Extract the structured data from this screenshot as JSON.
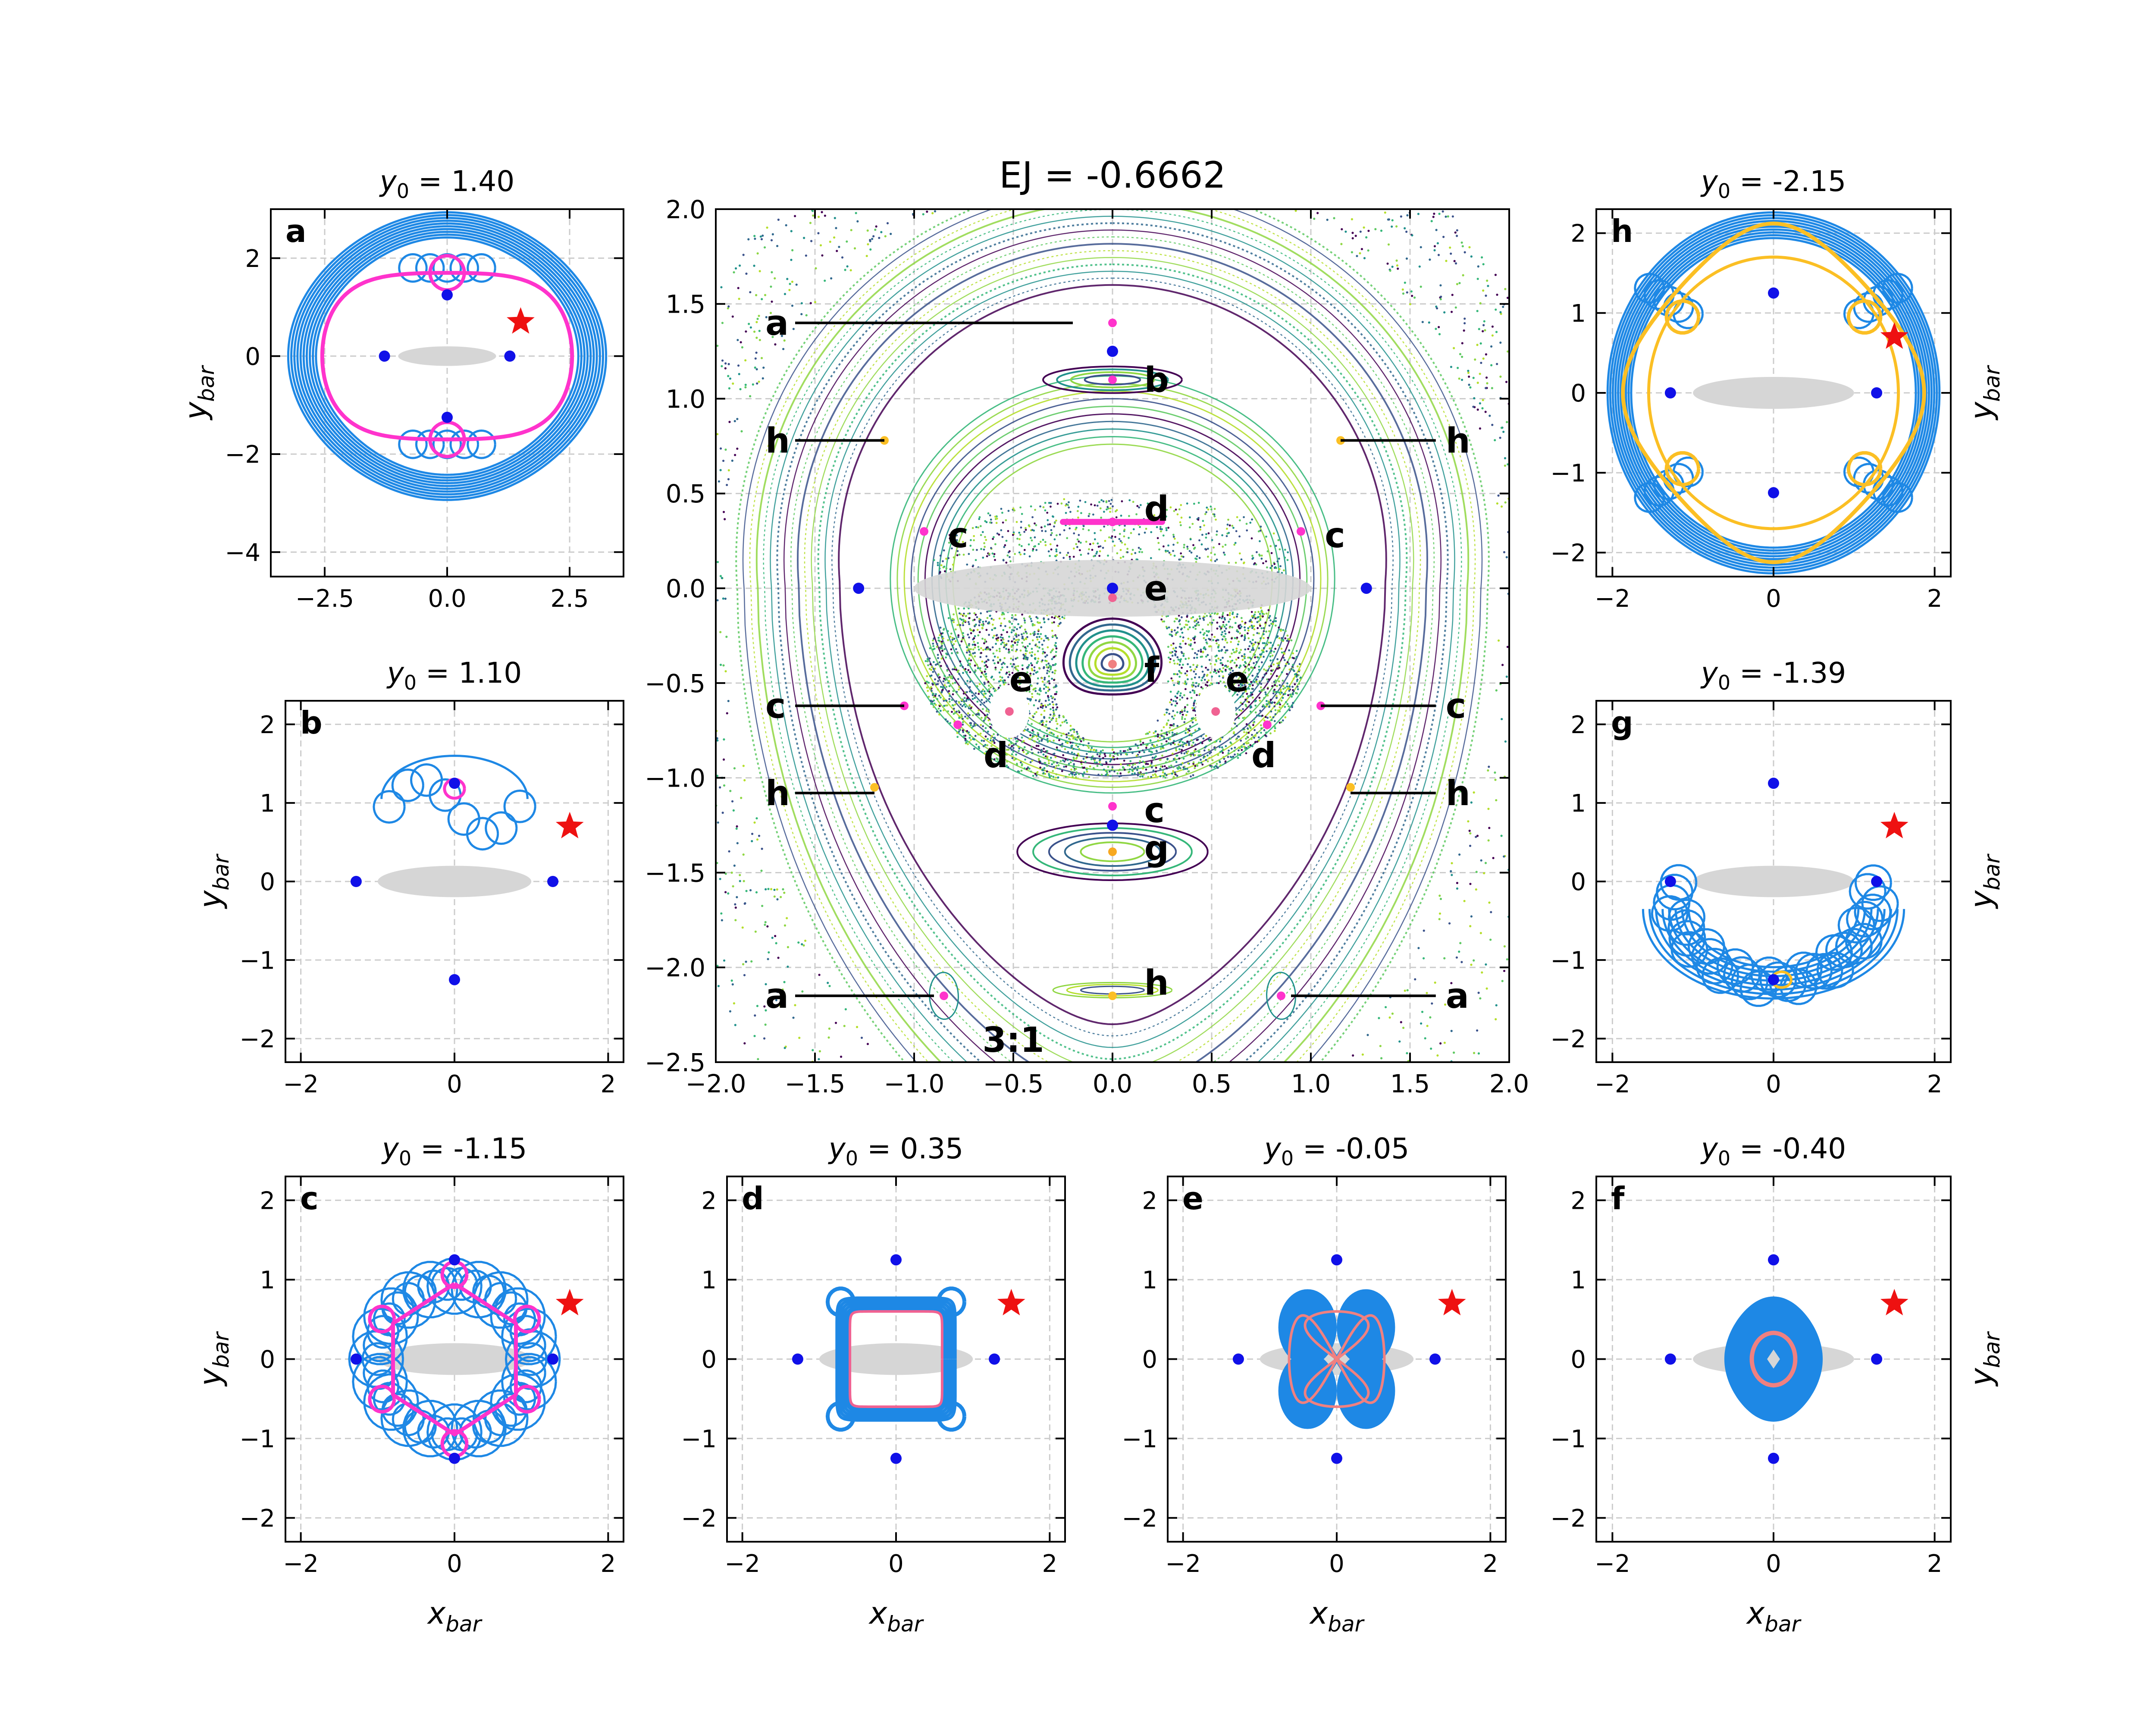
{
  "figure": {
    "background": "#ffffff",
    "colors": {
      "orbit": "#1e88e5",
      "magenta": "#ff33cc",
      "pink": "#f06292",
      "salmon": "#f08080",
      "orange": "#fbbf24",
      "point": "#1010e8",
      "star": "#ee1111",
      "bar": "#d6d6d6",
      "grid": "#cccccc"
    },
    "curve_colors": [
      "#440154",
      "#31688e",
      "#21918c",
      "#35b779",
      "#90d743",
      "#b5de2b",
      "#3b528b",
      "#5ec962"
    ],
    "marker_colors": {
      "a": "#ff33cc",
      "b": "#ff33cc",
      "c": "#ff33cc",
      "d": "#ff33cc",
      "e": "#f06292",
      "f": "#f08080",
      "g": "#f7a820",
      "h": "#fbbf24"
    }
  },
  "chart_data": [
    {
      "id": "main",
      "type": "scatter",
      "title": "EJ = -0.6662",
      "xlabel": "",
      "ylabel": "",
      "xlim": [
        -2.0,
        2.0
      ],
      "ylim": [
        -2.5,
        2.0
      ],
      "xticks": [
        -2.0,
        -1.5,
        -1.0,
        -0.5,
        0.0,
        0.5,
        1.0,
        1.5,
        2.0
      ],
      "yticks": [
        -2.5,
        -2.0,
        -1.5,
        -1.0,
        -0.5,
        0.0,
        0.5,
        1.0,
        1.5,
        2.0
      ],
      "xtick_labels": [
        "−2.0",
        "−1.5",
        "−1.0",
        "−0.5",
        "0.0",
        "0.5",
        "1.0",
        "1.5",
        "2.0"
      ],
      "ytick_labels": [
        "−2.5",
        "−2.0",
        "−1.5",
        "−1.0",
        "−0.5",
        "0.0",
        "0.5",
        "1.0",
        "1.5",
        "2.0"
      ],
      "grid": true,
      "annotation": "3:1",
      "equilibrium_points": [
        [
          0,
          1.25
        ],
        [
          0,
          -1.25
        ],
        [
          -1.28,
          0
        ],
        [
          1.28,
          0
        ],
        [
          0,
          0
        ]
      ],
      "bar": {
        "cx": 0,
        "cy": 0,
        "rx": 1.0,
        "ry": 0.15
      },
      "markers": [
        {
          "label": "a",
          "x": 0.0,
          "y": 1.4
        },
        {
          "label": "a",
          "x": -0.85,
          "y": -2.15
        },
        {
          "label": "a",
          "x": 0.85,
          "y": -2.15
        },
        {
          "label": "b",
          "x": 0.0,
          "y": 1.1
        },
        {
          "label": "c",
          "x": -0.95,
          "y": 0.3
        },
        {
          "label": "c",
          "x": 0.95,
          "y": 0.3
        },
        {
          "label": "c",
          "x": -1.05,
          "y": -0.62
        },
        {
          "label": "c",
          "x": 1.05,
          "y": -0.62
        },
        {
          "label": "c",
          "x": 0.0,
          "y": -1.15
        },
        {
          "label": "d",
          "x": 0.0,
          "y": 0.35
        },
        {
          "label": "d",
          "x": -0.78,
          "y": -0.72
        },
        {
          "label": "d",
          "x": 0.78,
          "y": -0.72
        },
        {
          "label": "e",
          "x": 0.0,
          "y": -0.05
        },
        {
          "label": "e",
          "x": -0.52,
          "y": -0.65
        },
        {
          "label": "e",
          "x": 0.52,
          "y": -0.65
        },
        {
          "label": "f",
          "x": 0.0,
          "y": -0.4
        },
        {
          "label": "g",
          "x": 0.0,
          "y": -1.39
        },
        {
          "label": "h",
          "x": -1.15,
          "y": 0.78
        },
        {
          "label": "h",
          "x": 1.15,
          "y": 0.78
        },
        {
          "label": "h",
          "x": -1.2,
          "y": -1.05
        },
        {
          "label": "h",
          "x": 1.2,
          "y": -1.05
        },
        {
          "label": "h",
          "x": 0.0,
          "y": -2.15
        }
      ],
      "labels": [
        {
          "text": "a",
          "x": -1.75,
          "y": 1.4,
          "line_to": -0.2
        },
        {
          "text": "b",
          "x": 0.16,
          "y": 1.1
        },
        {
          "text": "h",
          "x": -1.75,
          "y": 0.78,
          "line_to": -1.15
        },
        {
          "text": "h",
          "x": 1.68,
          "y": 0.78,
          "line_to": 1.15
        },
        {
          "text": "d",
          "x": 0.16,
          "y": 0.42
        },
        {
          "text": "c",
          "x": -0.83,
          "y": 0.28
        },
        {
          "text": "c",
          "x": 1.07,
          "y": 0.28
        },
        {
          "text": "e",
          "x": 0.16,
          "y": 0.0
        },
        {
          "text": "e",
          "x": -0.52,
          "y": -0.48
        },
        {
          "text": "f",
          "x": 0.16,
          "y": -0.43
        },
        {
          "text": "e",
          "x": 0.57,
          "y": -0.48
        },
        {
          "text": "c",
          "x": -1.75,
          "y": -0.62,
          "line_to": -1.05
        },
        {
          "text": "c",
          "x": 1.68,
          "y": -0.62,
          "line_to": 1.05
        },
        {
          "text": "d",
          "x": -0.65,
          "y": -0.88
        },
        {
          "text": "d",
          "x": 0.7,
          "y": -0.88
        },
        {
          "text": "h",
          "x": -1.75,
          "y": -1.08,
          "line_to": -1.2
        },
        {
          "text": "h",
          "x": 1.68,
          "y": -1.08,
          "line_to": 1.2
        },
        {
          "text": "c",
          "x": 0.16,
          "y": -1.17
        },
        {
          "text": "g",
          "x": 0.16,
          "y": -1.37
        },
        {
          "text": "h",
          "x": 0.16,
          "y": -2.08
        },
        {
          "text": "a",
          "x": -1.75,
          "y": -2.15,
          "line_to": -0.9
        },
        {
          "text": "a",
          "x": 1.68,
          "y": -2.15,
          "line_to": 0.9
        }
      ]
    },
    {
      "id": "a",
      "type": "line",
      "letter": "a",
      "title_value": "= 1.40",
      "xlim": [
        -3.6,
        3.6
      ],
      "ylim": [
        -4.5,
        3.0
      ],
      "xticks": [
        -2.5,
        0.0,
        2.5
      ],
      "xtick_labels": [
        "−2.5",
        "0.0",
        "2.5"
      ],
      "yticks": [
        -4,
        -2,
        0,
        2
      ],
      "ytick_labels": [
        "−4",
        "−2",
        "0",
        "2"
      ],
      "ylabel": "y_bar",
      "xlabel": "",
      "grid": true,
      "orbit_color": "#1e88e5",
      "highlight_color": "#ff33cc",
      "star": [
        1.5,
        0.7
      ],
      "points": [
        [
          0,
          1.25
        ],
        [
          0,
          -1.25
        ],
        [
          -1.28,
          0
        ],
        [
          1.28,
          0
        ]
      ],
      "bar": {
        "cx": 0,
        "cy": 0,
        "rx": 1.0,
        "ry": 0.2
      }
    },
    {
      "id": "b",
      "type": "line",
      "letter": "b",
      "title_value": "= 1.10",
      "xlim": [
        -2.2,
        2.2
      ],
      "ylim": [
        -2.3,
        2.3
      ],
      "xticks": [
        -2,
        0,
        2
      ],
      "xtick_labels": [
        "−2",
        "0",
        "2"
      ],
      "yticks": [
        -2,
        -1,
        0,
        1,
        2
      ],
      "ytick_labels": [
        "−2",
        "−1",
        "0",
        "1",
        "2"
      ],
      "ylabel": "y_bar",
      "xlabel": "",
      "grid": true,
      "orbit_color": "#1e88e5",
      "highlight_color": "#ff33cc",
      "star": [
        1.5,
        0.7
      ],
      "points": [
        [
          0,
          1.25
        ],
        [
          0,
          -1.25
        ],
        [
          -1.28,
          0
        ],
        [
          1.28,
          0
        ]
      ],
      "bar": {
        "cx": 0,
        "cy": 0,
        "rx": 1.0,
        "ry": 0.2
      }
    },
    {
      "id": "c",
      "type": "line",
      "letter": "c",
      "title_value": "= -1.15",
      "xlim": [
        -2.2,
        2.2
      ],
      "ylim": [
        -2.3,
        2.3
      ],
      "xticks": [
        -2,
        0,
        2
      ],
      "xtick_labels": [
        "−2",
        "0",
        "2"
      ],
      "yticks": [
        -2,
        -1,
        0,
        1,
        2
      ],
      "ytick_labels": [
        "−2",
        "−1",
        "0",
        "1",
        "2"
      ],
      "ylabel": "y_bar",
      "xlabel": "x_bar",
      "grid": true,
      "orbit_color": "#1e88e5",
      "highlight_color": "#ff33cc",
      "star": [
        1.5,
        0.7
      ],
      "points": [
        [
          0,
          1.25
        ],
        [
          0,
          -1.25
        ],
        [
          -1.28,
          0
        ],
        [
          1.28,
          0
        ]
      ],
      "bar": {
        "cx": 0,
        "cy": 0,
        "rx": 1.0,
        "ry": 0.2
      }
    },
    {
      "id": "d",
      "type": "line",
      "letter": "d",
      "title_value": "= 0.35",
      "xlim": [
        -2.2,
        2.2
      ],
      "ylim": [
        -2.3,
        2.3
      ],
      "xticks": [
        -2,
        0,
        2
      ],
      "xtick_labels": [
        "−2",
        "0",
        "2"
      ],
      "yticks": [
        -2,
        -1,
        0,
        1,
        2
      ],
      "ytick_labels": [
        "−2",
        "−1",
        "0",
        "1",
        "2"
      ],
      "ylabel": "",
      "xlabel": "x_bar",
      "grid": true,
      "orbit_color": "#1e88e5",
      "highlight_color": "#f06292",
      "star": [
        1.5,
        0.7
      ],
      "points": [
        [
          0,
          1.25
        ],
        [
          0,
          -1.25
        ],
        [
          -1.28,
          0
        ],
        [
          1.28,
          0
        ]
      ],
      "bar": {
        "cx": 0,
        "cy": 0,
        "rx": 1.0,
        "ry": 0.2
      }
    },
    {
      "id": "e",
      "type": "line",
      "letter": "e",
      "title_value": "= -0.05",
      "xlim": [
        -2.2,
        2.2
      ],
      "ylim": [
        -2.3,
        2.3
      ],
      "xticks": [
        -2,
        0,
        2
      ],
      "xtick_labels": [
        "−2",
        "0",
        "2"
      ],
      "yticks": [
        -2,
        -1,
        0,
        1,
        2
      ],
      "ytick_labels": [
        "−2",
        "−1",
        "0",
        "1",
        "2"
      ],
      "ylabel": "",
      "xlabel": "x_bar",
      "grid": true,
      "orbit_color": "#1e88e5",
      "highlight_color": "#f08080",
      "star": [
        1.5,
        0.7
      ],
      "points": [
        [
          0,
          1.25
        ],
        [
          0,
          -1.25
        ],
        [
          -1.28,
          0
        ],
        [
          1.28,
          0
        ]
      ],
      "bar": {
        "cx": 0,
        "cy": 0,
        "rx": 1.0,
        "ry": 0.2
      }
    },
    {
      "id": "f",
      "type": "line",
      "letter": "f",
      "title_value": "= -0.40",
      "xlim": [
        -2.2,
        2.2
      ],
      "ylim": [
        -2.3,
        2.3
      ],
      "xticks": [
        -2,
        0,
        2
      ],
      "xtick_labels": [
        "−2",
        "0",
        "2"
      ],
      "yticks": [
        -2,
        -1,
        0,
        1,
        2
      ],
      "ytick_labels": [
        "−2",
        "−1",
        "0",
        "1",
        "2"
      ],
      "ylabel": "y_bar",
      "xlabel": "x_bar",
      "grid": true,
      "orbit_color": "#1e88e5",
      "highlight_color": "#f08080",
      "star": [
        1.5,
        0.7
      ],
      "points": [
        [
          0,
          1.25
        ],
        [
          0,
          -1.25
        ],
        [
          -1.28,
          0
        ],
        [
          1.28,
          0
        ]
      ],
      "bar": {
        "cx": 0,
        "cy": 0,
        "rx": 1.0,
        "ry": 0.2
      }
    },
    {
      "id": "g",
      "type": "line",
      "letter": "g",
      "title_value": "= -1.39",
      "xlim": [
        -2.2,
        2.2
      ],
      "ylim": [
        -2.3,
        2.3
      ],
      "xticks": [
        -2,
        0,
        2
      ],
      "xtick_labels": [
        "−2",
        "0",
        "2"
      ],
      "yticks": [
        -2,
        -1,
        0,
        1,
        2
      ],
      "ytick_labels": [
        "−2",
        "−1",
        "0",
        "1",
        "2"
      ],
      "ylabel": "y_bar",
      "xlabel": "",
      "grid": true,
      "orbit_color": "#1e88e5",
      "highlight_color": "#fbbf24",
      "star": [
        1.5,
        0.7
      ],
      "points": [
        [
          0,
          1.25
        ],
        [
          0,
          -1.25
        ],
        [
          -1.28,
          0
        ],
        [
          1.28,
          0
        ]
      ],
      "bar": {
        "cx": 0,
        "cy": 0,
        "rx": 1.0,
        "ry": 0.2
      }
    },
    {
      "id": "h",
      "type": "line",
      "letter": "h",
      "title_value": "= -2.15",
      "xlim": [
        -2.2,
        2.2
      ],
      "ylim": [
        -2.3,
        2.3
      ],
      "xticks": [
        -2,
        0,
        2
      ],
      "xtick_labels": [
        "−2",
        "0",
        "2"
      ],
      "yticks": [
        -2,
        -1,
        0,
        1,
        2
      ],
      "ytick_labels": [
        "−2",
        "−1",
        "0",
        "1",
        "2"
      ],
      "ylabel": "y_bar",
      "xlabel": "",
      "grid": true,
      "orbit_color": "#1e88e5",
      "highlight_color": "#fbbf24",
      "star": [
        1.5,
        0.7
      ],
      "points": [
        [
          0,
          1.25
        ],
        [
          0,
          -1.25
        ],
        [
          -1.28,
          0
        ],
        [
          1.28,
          0
        ]
      ],
      "bar": {
        "cx": 0,
        "cy": 0,
        "rx": 1.0,
        "ry": 0.2
      }
    }
  ]
}
